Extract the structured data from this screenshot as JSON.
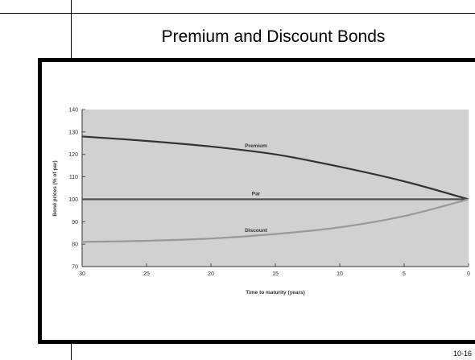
{
  "slide": {
    "title": "Premium and Discount Bonds",
    "number": "10-16"
  },
  "chart_data": {
    "type": "line",
    "title": "",
    "xlabel": "Time to maturity (years)",
    "ylabel": "Bond prices (% of par)",
    "xlim": [
      30,
      0
    ],
    "ylim": [
      70,
      140
    ],
    "x_ticks": [
      30,
      25,
      20,
      15,
      10,
      5,
      0
    ],
    "y_ticks": [
      70,
      80,
      90,
      100,
      110,
      120,
      130,
      140
    ],
    "grid": false,
    "background_color": "#d1d1d1",
    "series": [
      {
        "name": "Premium",
        "color": "#333333",
        "x": [
          30,
          25,
          20,
          15,
          10,
          5,
          0
        ],
        "y": [
          128,
          126,
          123.5,
          120,
          114.5,
          108,
          100
        ]
      },
      {
        "name": "Par",
        "color": "#4d4d4d",
        "x": [
          30,
          25,
          20,
          15,
          10,
          5,
          0
        ],
        "y": [
          100,
          100,
          100,
          100,
          100,
          100,
          100
        ]
      },
      {
        "name": "Discount",
        "color": "#999999",
        "x": [
          30,
          25,
          20,
          15,
          10,
          5,
          0
        ],
        "y": [
          81,
          81.5,
          82.5,
          84.5,
          87.5,
          92.5,
          100
        ]
      }
    ]
  }
}
